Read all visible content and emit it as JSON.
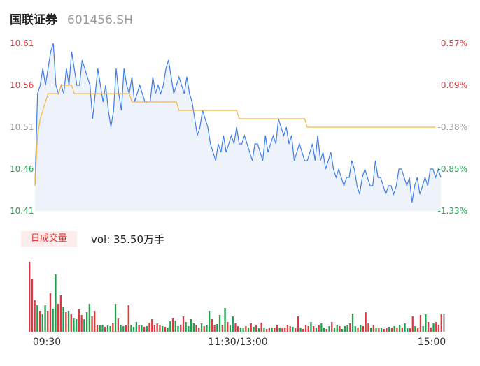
{
  "header": {
    "name": "国联证券",
    "code": "601456.SH"
  },
  "volume_panel": {
    "button_label": "日成交量",
    "vol_text": "vol: 35.50万手"
  },
  "colors": {
    "price_line": "#3f7ee8",
    "avg_line": "#f5b843",
    "up": "#e0383e",
    "down": "#1aa34a",
    "neutral": "#999999",
    "fill": "#eef3fb"
  },
  "chart_data": [
    {
      "type": "line",
      "title": "",
      "x_ticks": [
        "09:30",
        "11:30/13:00",
        "15:00"
      ],
      "y_ticks_left": [
        "10.61",
        "10.56",
        "10.51",
        "10.46",
        "10.41"
      ],
      "y_ticks_right": [
        "0.57%",
        "0.09%",
        "-0.38%",
        "-0.85%",
        "-1.33%"
      ],
      "ylim": [
        10.41,
        10.61
      ],
      "series": [
        {
          "values": [
            10.44,
            10.55,
            10.56,
            10.58,
            10.56,
            10.58,
            10.6,
            10.61,
            10.56,
            10.55,
            10.56,
            10.55,
            10.58,
            10.56,
            10.6,
            10.58,
            10.56,
            10.56,
            10.59,
            10.58,
            10.57,
            10.56,
            10.52,
            10.55,
            10.58,
            10.56,
            10.54,
            10.56,
            10.53,
            10.51,
            10.53,
            10.58,
            10.55,
            10.53,
            10.58,
            10.56,
            10.55,
            10.57,
            10.54,
            10.55,
            10.56,
            10.55,
            10.54,
            10.54,
            10.54,
            10.57,
            10.55,
            10.56,
            10.55,
            10.56,
            10.58,
            10.59,
            10.57,
            10.55,
            10.56,
            10.57,
            10.56,
            10.55,
            10.57,
            10.55,
            10.54,
            10.52,
            10.5,
            10.51,
            10.53,
            10.52,
            10.51,
            10.49,
            10.48,
            10.47,
            10.49,
            10.48,
            10.5,
            10.48,
            10.49,
            10.5,
            10.49,
            10.51,
            10.49,
            10.49,
            10.5,
            10.49,
            10.48,
            10.47,
            10.49,
            10.49,
            10.48,
            10.47,
            10.5,
            10.48,
            10.49,
            10.5,
            10.49,
            10.52,
            10.51,
            10.5,
            10.51,
            10.49,
            10.5,
            10.47,
            10.48,
            10.49,
            10.48,
            10.47,
            10.47,
            10.48,
            10.49,
            10.47,
            10.5,
            10.47,
            10.48,
            10.46,
            10.47,
            10.48,
            10.46,
            10.45,
            10.46,
            10.45,
            10.44,
            10.45,
            10.45,
            10.47,
            10.46,
            10.44,
            10.43,
            10.45,
            10.46,
            10.45,
            10.44,
            10.44,
            10.47,
            10.45,
            10.45,
            10.44,
            10.43,
            10.44,
            10.44,
            10.43,
            10.44,
            10.46,
            10.46,
            10.45,
            10.44,
            10.45,
            10.42,
            10.44,
            10.45,
            10.43,
            10.44,
            10.45,
            10.44,
            10.46,
            10.46,
            10.45,
            10.46,
            10.45
          ],
          "color": "#3f7ee8"
        },
        {
          "values": [
            10.44,
            10.5,
            10.52,
            10.53,
            10.54,
            10.55,
            10.55,
            10.55,
            10.55,
            10.55,
            10.56,
            10.56,
            10.56,
            10.56,
            10.56,
            10.55,
            10.55,
            10.55,
            10.55,
            10.55,
            10.55,
            10.55,
            10.55,
            10.55,
            10.55,
            10.55,
            10.55,
            10.55,
            10.55,
            10.55,
            10.55,
            10.55,
            10.55,
            10.55,
            10.55,
            10.55,
            10.55,
            10.54,
            10.54,
            10.54,
            10.54,
            10.54,
            10.54,
            10.54,
            10.54,
            10.54,
            10.54,
            10.54,
            10.54,
            10.54,
            10.54,
            10.54,
            10.54,
            10.54,
            10.54,
            10.53,
            10.53,
            10.53,
            10.53,
            10.53,
            10.53,
            10.53,
            10.53,
            10.53,
            10.53,
            10.53,
            10.53,
            10.53,
            10.53,
            10.53,
            10.53,
            10.53,
            10.53,
            10.53,
            10.53,
            10.53,
            10.53,
            10.53,
            10.52,
            10.52,
            10.52,
            10.52,
            10.52,
            10.52,
            10.52,
            10.52,
            10.52,
            10.52,
            10.52,
            10.52,
            10.52,
            10.52,
            10.52,
            10.52,
            10.52,
            10.52,
            10.52,
            10.52,
            10.52,
            10.52,
            10.52,
            10.52,
            10.52,
            10.52,
            10.51,
            10.51,
            10.51,
            10.51,
            10.51,
            10.51,
            10.51,
            10.51,
            10.51,
            10.51,
            10.51,
            10.51,
            10.51,
            10.51,
            10.51,
            10.51,
            10.51,
            10.51,
            10.51,
            10.51,
            10.51,
            10.51,
            10.51,
            10.51,
            10.51,
            10.51,
            10.51,
            10.51,
            10.51,
            10.51,
            10.51,
            10.51,
            10.51,
            10.51,
            10.51,
            10.51,
            10.51,
            10.51,
            10.51,
            10.51,
            10.51,
            10.51,
            10.51,
            10.51,
            10.51,
            10.51,
            10.51,
            10.51,
            10.51,
            10.51
          ],
          "color": "#f5b843"
        }
      ]
    },
    {
      "type": "bar",
      "title": "",
      "values": [
        100,
        75,
        45,
        38,
        30,
        25,
        38,
        30,
        55,
        33,
        82,
        40,
        52,
        35,
        28,
        30,
        25,
        20,
        18,
        32,
        24,
        18,
        28,
        40,
        22,
        30,
        10,
        9,
        10,
        7,
        9,
        8,
        12,
        40,
        20,
        10,
        8,
        9,
        38,
        10,
        7,
        14,
        10,
        9,
        7,
        8,
        13,
        18,
        10,
        12,
        9,
        8,
        7,
        6,
        15,
        20,
        16,
        8,
        10,
        22,
        14,
        8,
        18,
        12,
        10,
        6,
        12,
        8,
        10,
        30,
        18,
        10,
        11,
        24,
        10,
        34,
        14,
        9,
        22,
        12,
        8,
        6,
        5,
        8,
        6,
        12,
        7,
        10,
        5,
        13,
        6,
        4,
        6,
        6,
        5,
        10,
        6,
        5,
        6,
        10,
        8,
        7,
        5,
        22,
        6,
        4,
        10,
        8,
        14,
        8,
        5,
        10,
        12,
        6,
        4,
        8,
        14,
        6,
        10,
        8,
        4,
        8,
        10,
        12,
        26,
        8,
        6,
        10,
        8,
        28,
        12,
        6,
        10,
        5,
        5,
        6,
        4,
        5,
        7,
        6,
        8,
        6,
        10,
        6,
        12,
        5,
        5,
        22,
        8,
        5,
        24,
        8,
        25,
        14,
        6,
        12,
        14,
        10,
        25,
        26
      ],
      "colors": [
        "up",
        "up",
        "up",
        "down",
        "up",
        "down",
        "down",
        "up",
        "up",
        "down",
        "down",
        "up",
        "up",
        "down",
        "up",
        "down",
        "up",
        "down",
        "down",
        "up",
        "up",
        "down",
        "down",
        "down",
        "up",
        "up",
        "up",
        "down",
        "down",
        "up",
        "down",
        "down",
        "up",
        "down",
        "up",
        "down",
        "down",
        "up",
        "up",
        "down",
        "down",
        "down",
        "up",
        "down",
        "up",
        "down",
        "up",
        "up",
        "up",
        "up",
        "up",
        "down",
        "up",
        "down",
        "down",
        "up",
        "down",
        "down",
        "up",
        "up",
        "down",
        "down",
        "down",
        "down",
        "up",
        "up",
        "down",
        "up",
        "down",
        "down",
        "up",
        "up",
        "down",
        "down",
        "up",
        "down",
        "up",
        "down",
        "down",
        "up",
        "up",
        "down",
        "down",
        "up",
        "down",
        "up",
        "down",
        "up",
        "down",
        "up",
        "down",
        "up",
        "up",
        "down",
        "up",
        "up",
        "down",
        "up",
        "up",
        "up",
        "up",
        "down",
        "up",
        "up",
        "down",
        "up",
        "up",
        "up",
        "down",
        "up",
        "down",
        "up",
        "down",
        "down",
        "up",
        "down",
        "up",
        "down",
        "down",
        "up",
        "down",
        "down",
        "down",
        "up",
        "down",
        "down",
        "up",
        "down",
        "up",
        "up",
        "up",
        "down",
        "up",
        "down",
        "up",
        "down",
        "up",
        "up",
        "down",
        "up",
        "down",
        "up",
        "down",
        "up",
        "down",
        "down",
        "up",
        "up",
        "down",
        "up",
        "up",
        "down",
        "down",
        "up",
        "up",
        "down",
        "up",
        "up",
        "up",
        "neutral"
      ]
    }
  ]
}
